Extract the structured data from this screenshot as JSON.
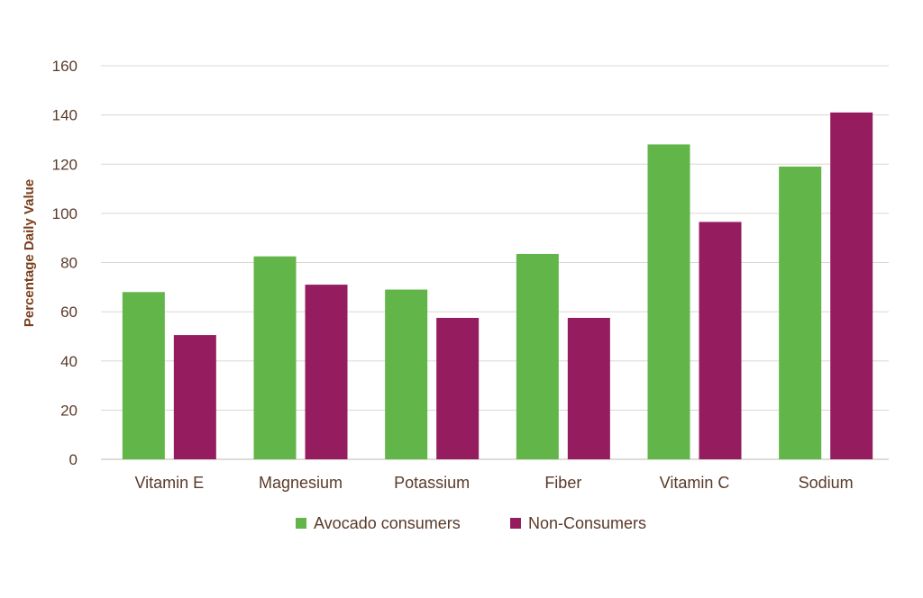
{
  "chart_data": {
    "type": "bar",
    "ylabel": "Percentage Daily Value",
    "ylim": [
      0,
      160
    ],
    "yticks": [
      0,
      20,
      40,
      60,
      80,
      100,
      120,
      140,
      160
    ],
    "grid": true,
    "legend_position": "bottom",
    "categories": [
      "Vitamin E",
      "Magnesium",
      "Potassium",
      "Fiber",
      "Vitamin C",
      "Sodium"
    ],
    "series": [
      {
        "name": "Avocado consumers",
        "color": "#62b548",
        "values": [
          68,
          82.5,
          69,
          83.5,
          128,
          119
        ]
      },
      {
        "name": "Non-Consumers",
        "color": "#951d5f",
        "values": [
          50.5,
          71,
          57.5,
          57.5,
          96.5,
          141
        ]
      }
    ]
  }
}
